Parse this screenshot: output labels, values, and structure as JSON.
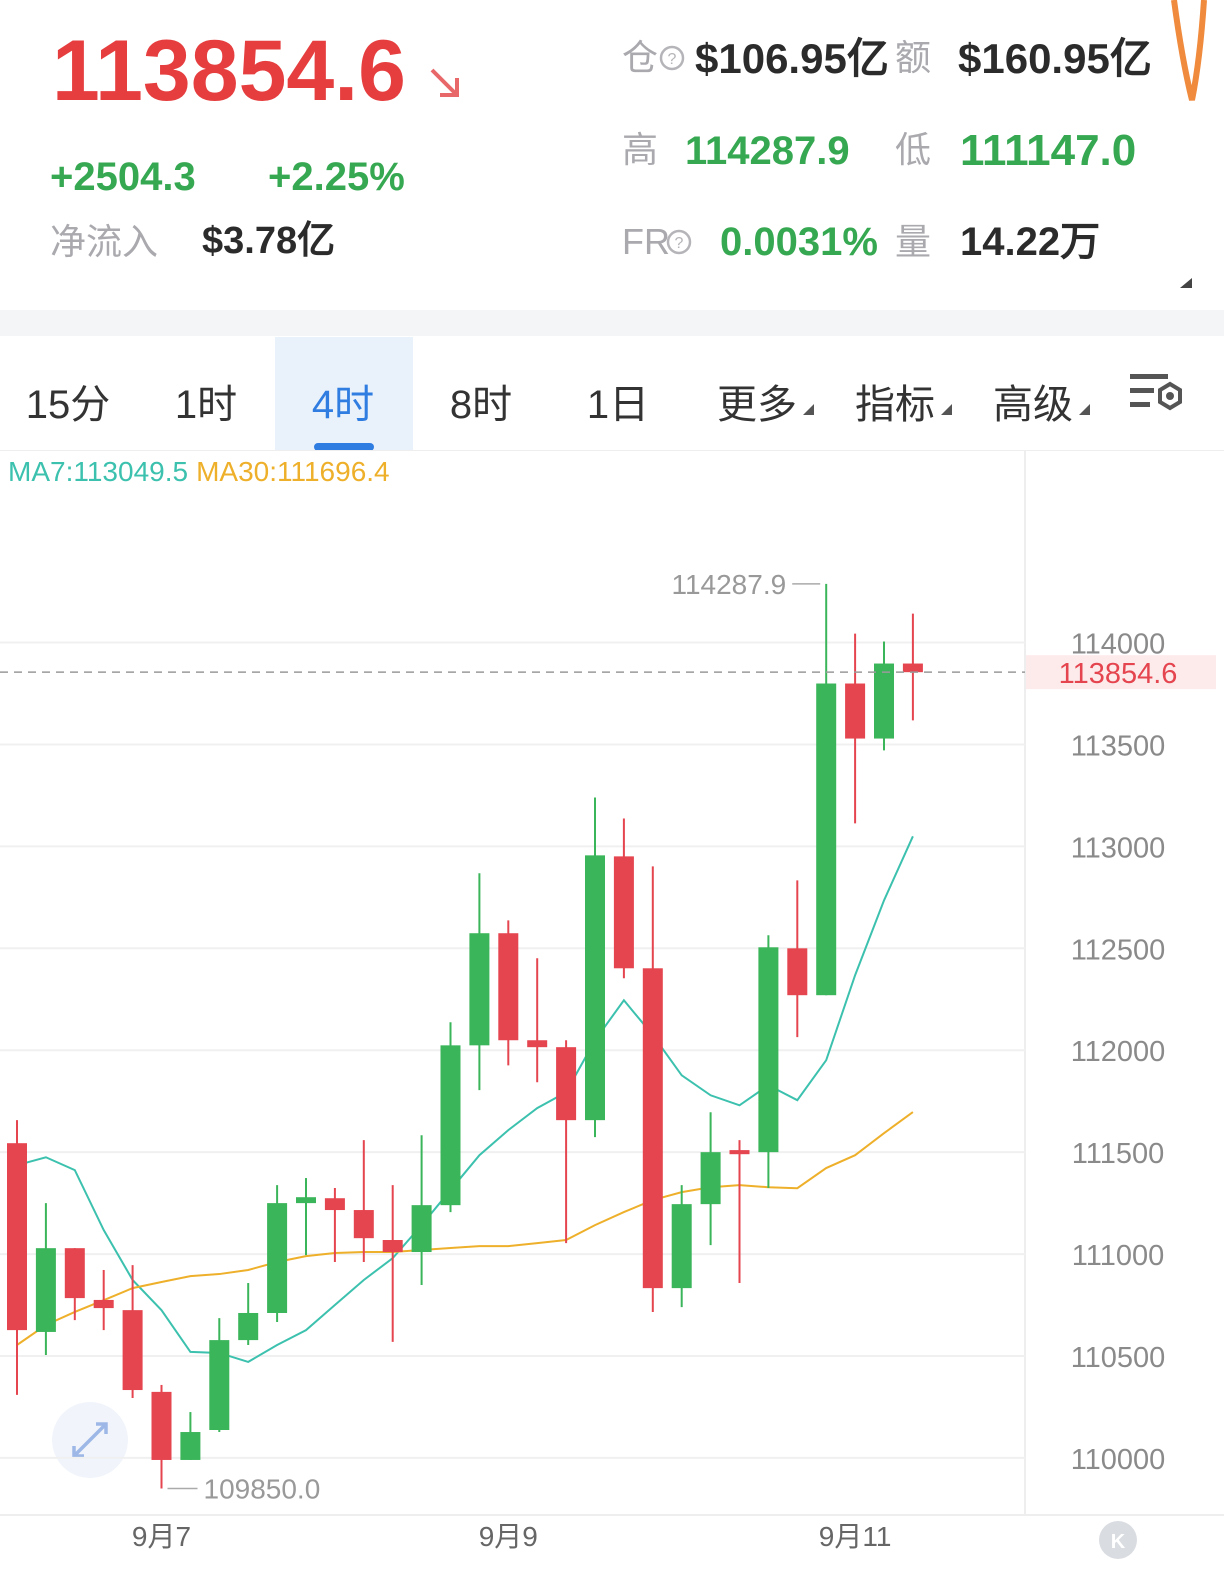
{
  "header": {
    "price": "113854.6",
    "change": "+2504.3",
    "change_pct": "+2.25%",
    "netflow_label": "净流入",
    "netflow": "$3.78亿",
    "oi_label": "仓",
    "oi": "$106.95亿",
    "turnover_label": "额",
    "turnover": "$160.95亿",
    "high_label": "高",
    "high": "114287.9",
    "low_label": "低",
    "low": "111147.0",
    "fr_label": "FR",
    "fr": "0.0031%",
    "volume_label": "量",
    "volume": "14.22万"
  },
  "tabs": {
    "items": [
      "15分",
      "1时",
      "4时",
      "8时",
      "1日",
      "更多",
      "指标",
      "高级"
    ],
    "selected": 2
  },
  "chart_data": {
    "type": "candlestick",
    "categories": [
      null,
      null,
      null,
      null,
      null,
      "9月7",
      null,
      null,
      null,
      null,
      null,
      null,
      null,
      null,
      null,
      null,
      null,
      "9月9",
      null,
      null,
      null,
      null,
      null,
      null,
      null,
      null,
      null,
      null,
      null,
      "9月11",
      null,
      null
    ],
    "open": [
      111544,
      110618,
      111029,
      110775,
      110725,
      110324,
      109990,
      110137,
      110578,
      110711,
      111250,
      111274,
      111216,
      111069,
      111010,
      111240,
      112024,
      112574,
      112049,
      112015,
      111657,
      112951,
      112402,
      110833,
      111245,
      111510,
      111500,
      112500,
      112270,
      113799,
      113529,
      113897
    ],
    "high": [
      111657,
      111250,
      111029,
      110922,
      110946,
      110358,
      110225,
      110686,
      110858,
      111338,
      111373,
      111324,
      111559,
      111338,
      111583,
      112137,
      112868,
      112637,
      112451,
      112049,
      113240,
      113137,
      112902,
      111338,
      111696,
      111559,
      112564,
      112833,
      114287.9,
      114044,
      114005,
      114142
    ],
    "low": [
      110309,
      110505,
      110676,
      110627,
      110294,
      109850,
      109990,
      110127,
      110554,
      110667,
      110995,
      110961,
      110961,
      110569,
      110848,
      111206,
      111804,
      111926,
      111843,
      111054,
      111574,
      112353,
      110716,
      110740,
      111044,
      110858,
      111324,
      112064,
      112270,
      113113,
      113471,
      113618
    ],
    "close": [
      110627,
      111029,
      110784,
      110735,
      110333,
      109990,
      110127,
      110578,
      110711,
      111250,
      111279,
      111216,
      111078,
      111010,
      111240,
      112024,
      112574,
      112049,
      112015,
      111657,
      112956,
      112402,
      110833,
      111245,
      111500,
      111490,
      112505,
      112270,
      113799,
      113529,
      113897,
      113854.6
    ],
    "up_color": "#3bb55a",
    "down_color": "#e5454f",
    "series": [
      {
        "name": "MA7:113049.5",
        "color": "#3cc1ae",
        "values": [
          111436,
          111475,
          111412,
          111118,
          110873,
          110725,
          110520,
          110515,
          110471,
          110554,
          110627,
          110750,
          110873,
          110980,
          111142,
          111314,
          111485,
          111608,
          111716,
          111794,
          112049,
          112245,
          112074,
          111877,
          111779,
          111730,
          111828,
          111755,
          111951,
          112368,
          112735,
          113049.5
        ]
      },
      {
        "name": "MA30:111696.4",
        "color": "#eeb02a",
        "values": [
          110554,
          110652,
          110716,
          110774,
          110833,
          110863,
          110892,
          110902,
          110922,
          110961,
          110990,
          111005,
          111010,
          111010,
          111020,
          111030,
          111039,
          111039,
          111054,
          111069,
          111142,
          111206,
          111265,
          111304,
          111328,
          111338,
          111328,
          111323,
          111422,
          111485,
          111593,
          111696.4
        ]
      }
    ],
    "ylim": [
      109720,
      114920
    ],
    "yticks": [
      110000,
      110500,
      111000,
      111500,
      112000,
      112500,
      113000,
      113500,
      114000
    ],
    "grid": true,
    "last_price": 113854.6,
    "max_label": 114287.9,
    "min_label": {
      "value": 109850,
      "label": "109850.0"
    }
  }
}
